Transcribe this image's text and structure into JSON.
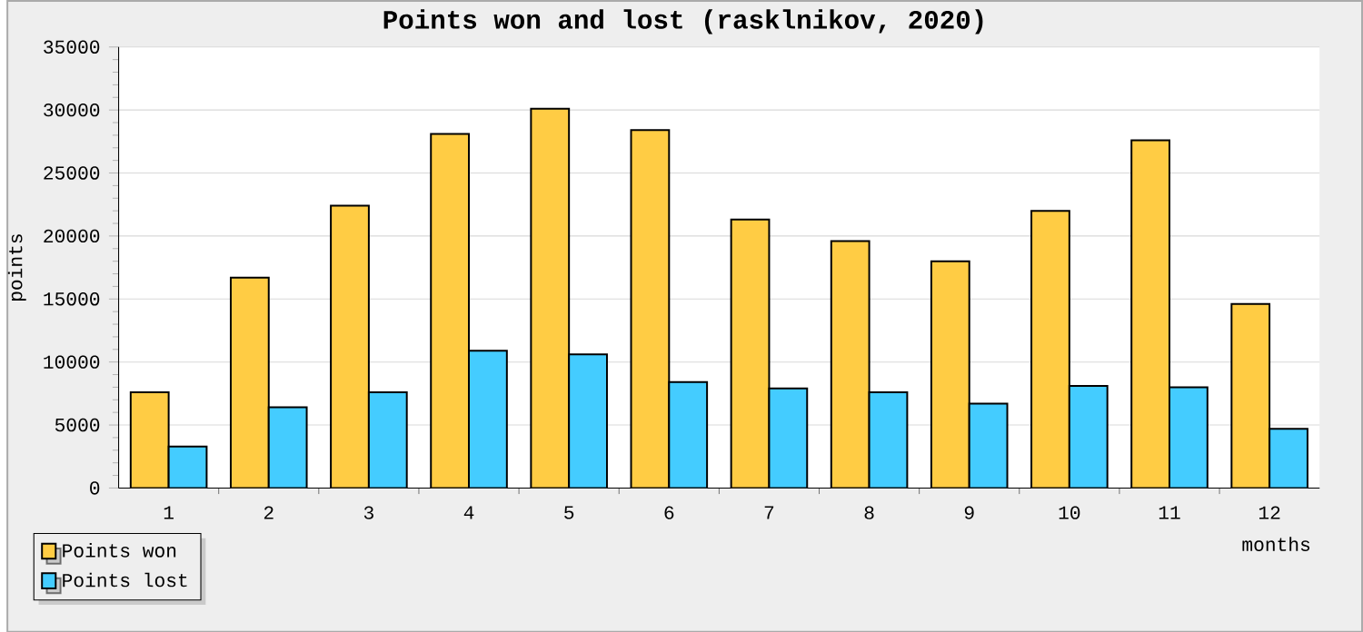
{
  "chart_data": {
    "type": "bar",
    "title": "Points won and lost (rasklnikov, 2020)",
    "xlabel": "months",
    "ylabel": "points",
    "categories": [
      "1",
      "2",
      "3",
      "4",
      "5",
      "6",
      "7",
      "8",
      "9",
      "10",
      "11",
      "12"
    ],
    "series": [
      {
        "name": "Points won",
        "color": "#ffcc44",
        "values": [
          7600,
          16700,
          22400,
          28100,
          30100,
          28400,
          21300,
          19600,
          18000,
          22000,
          27600,
          14600
        ]
      },
      {
        "name": "Points lost",
        "color": "#44ccff",
        "values": [
          3300,
          6400,
          7600,
          10900,
          10600,
          8400,
          7900,
          7600,
          6700,
          8100,
          8000,
          4700
        ]
      }
    ],
    "ylim": [
      0,
      35000
    ],
    "yticks": [
      0,
      5000,
      10000,
      15000,
      20000,
      25000,
      30000,
      35000
    ],
    "grid": "y",
    "legend": "bottom left"
  }
}
